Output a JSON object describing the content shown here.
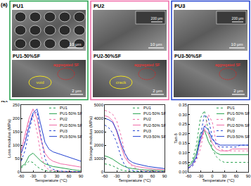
{
  "figure": {
    "panel_a": {
      "label": "(a)",
      "panels": [
        {
          "title": "PU1",
          "color": "#22a04a",
          "top": {
            "scale_bar": "10 μm"
          },
          "bottom": {
            "title": "PU1-50%SF",
            "scale_bar": "2 μm",
            "notes": [
              "aggregated SF",
              "void"
            ]
          }
        },
        {
          "title": "PU2",
          "color": "#f06ba8",
          "top": {
            "scale_bar": "10 μm",
            "inset_scale_bar": "200 μm"
          },
          "bottom": {
            "title": "PU2-50%SF",
            "scale_bar": "2 μm",
            "notes": [
              "aggregated SF",
              "crack"
            ]
          }
        },
        {
          "title": "PU3",
          "color": "#2040d0",
          "top": {
            "scale_bar": "10 μm",
            "inset_scale_bar": "200 μm"
          },
          "bottom": {
            "title": "PU3-50%SF",
            "scale_bar": "2 μm",
            "notes": [
              "aggregated SF"
            ]
          }
        }
      ]
    },
    "panel_b": {
      "label": "(b)"
    }
  },
  "chart_data": [
    {
      "type": "line",
      "x_label": "Temperature (°C)",
      "y_label": "Loss modulus (MPa)",
      "x": [
        -60,
        -50,
        -40,
        -30,
        -20,
        -10,
        0,
        10,
        20,
        30,
        40,
        50,
        60,
        70,
        80,
        90
      ],
      "xlim": [
        -60,
        90
      ],
      "xticks": [
        -60,
        -30,
        0,
        30,
        60,
        90
      ],
      "ylim": [
        0,
        250
      ],
      "yticks": [
        0,
        50,
        100,
        150,
        200,
        250
      ],
      "grid": false,
      "legend": "upper right",
      "series": [
        {
          "name": "PU1",
          "color": "#22a04a",
          "line_style": "dot",
          "values": [
            15,
            25,
            40,
            35,
            20,
            10,
            5,
            3,
            2,
            2,
            2,
            1,
            1,
            1,
            1,
            1
          ]
        },
        {
          "name": "PU1-50% SF",
          "color": "#22a04a",
          "line_style": "solid",
          "values": [
            20,
            30,
            60,
            70,
            55,
            40,
            30,
            25,
            20,
            18,
            15,
            12,
            10,
            8,
            6,
            5
          ]
        },
        {
          "name": "PU2",
          "color": "#f06ba8",
          "line_style": "dot",
          "values": [
            60,
            120,
            190,
            210,
            150,
            60,
            20,
            8,
            5,
            3,
            2,
            2,
            1,
            1,
            1,
            1
          ]
        },
        {
          "name": "PU2-50% SF",
          "color": "#f06ba8",
          "line_style": "solid",
          "values": [
            80,
            140,
            200,
            235,
            200,
            120,
            70,
            50,
            40,
            35,
            30,
            28,
            25,
            22,
            20,
            18
          ]
        },
        {
          "name": "PU3",
          "color": "#2040d0",
          "line_style": "dot",
          "values": [
            40,
            80,
            150,
            215,
            225,
            130,
            50,
            20,
            10,
            5,
            3,
            2,
            2,
            1,
            1,
            1
          ]
        },
        {
          "name": "PU3-50% SF",
          "color": "#2040d0",
          "line_style": "solid",
          "values": [
            70,
            110,
            170,
            220,
            235,
            170,
            110,
            85,
            75,
            70,
            65,
            60,
            55,
            50,
            45,
            40
          ]
        }
      ]
    },
    {
      "type": "line",
      "x_label": "Temperature (°C)",
      "y_label": "Storage modulus (MPa)",
      "x": [
        -60,
        -50,
        -40,
        -30,
        -20,
        -10,
        0,
        10,
        20,
        30,
        40,
        50,
        60,
        70,
        80,
        90
      ],
      "xlim": [
        -60,
        90
      ],
      "xticks": [
        -60,
        -30,
        0,
        30,
        60,
        90
      ],
      "ylim": [
        0,
        5000
      ],
      "yticks": [
        0,
        1000,
        2000,
        3000,
        4000,
        5000
      ],
      "grid": false,
      "legend": "upper right",
      "series": [
        {
          "name": "PU1",
          "color": "#22a04a",
          "line_style": "dot",
          "values": [
            600,
            550,
            450,
            300,
            150,
            80,
            50,
            30,
            20,
            15,
            10,
            8,
            6,
            5,
            5,
            5
          ]
        },
        {
          "name": "PU1-50% SF",
          "color": "#22a04a",
          "line_style": "solid",
          "values": [
            1200,
            1100,
            950,
            750,
            550,
            400,
            300,
            250,
            200,
            170,
            150,
            130,
            110,
            100,
            90,
            80
          ]
        },
        {
          "name": "PU2",
          "color": "#f06ba8",
          "line_style": "dot",
          "values": [
            4600,
            4500,
            4300,
            3800,
            2800,
            1500,
            700,
            400,
            250,
            150,
            100,
            80,
            60,
            50,
            40,
            30
          ]
        },
        {
          "name": "PU2-50% SF",
          "color": "#f06ba8",
          "line_style": "solid",
          "values": [
            4200,
            4100,
            3800,
            3000,
            2000,
            1100,
            700,
            500,
            400,
            350,
            300,
            260,
            220,
            200,
            180,
            160
          ]
        },
        {
          "name": "PU3",
          "color": "#2040d0",
          "line_style": "dot",
          "values": [
            3500,
            3300,
            2900,
            2200,
            1200,
            500,
            200,
            100,
            60,
            40,
            30,
            20,
            15,
            10,
            10,
            10
          ]
        },
        {
          "name": "PU3-50% SF",
          "color": "#2040d0",
          "line_style": "solid",
          "values": [
            4000,
            3900,
            3700,
            3100,
            2200,
            1400,
            900,
            700,
            600,
            520,
            460,
            400,
            360,
            320,
            280,
            250
          ]
        }
      ]
    },
    {
      "type": "line",
      "x_label": "Temperature (°C)",
      "y_label": "Tan δ",
      "x": [
        -60,
        -50,
        -40,
        -30,
        -20,
        -10,
        0,
        10,
        20,
        30,
        40,
        50,
        60,
        70,
        80,
        90
      ],
      "xlim": [
        -60,
        90
      ],
      "xticks": [
        -60,
        -30,
        0,
        30,
        60,
        90
      ],
      "ylim": [
        0,
        0.35
      ],
      "yticks": [
        {
          "value": 0,
          "label": "0.00"
        },
        {
          "value": 0.05,
          "label": "0.05"
        },
        {
          "value": 0.1,
          "label": "0.10"
        },
        {
          "value": 0.15,
          "label": "0.15"
        },
        {
          "value": 0.2,
          "label": "0.20"
        },
        {
          "value": 0.25,
          "label": "0.25"
        },
        {
          "value": 0.3,
          "label": "0.30"
        },
        {
          "value": 0.35,
          "label": "0.35"
        }
      ],
      "grid": false,
      "legend": "upper right",
      "series": [
        {
          "name": "PU1",
          "color": "#22a04a",
          "line_style": "dot",
          "values": [
            0.03,
            0.06,
            0.14,
            0.28,
            0.32,
            0.22,
            0.12,
            0.08,
            0.06,
            0.05,
            0.05,
            0.05,
            0.05,
            0.05,
            0.05,
            0.05
          ]
        },
        {
          "name": "PU1-50% SF",
          "color": "#22a04a",
          "line_style": "solid",
          "values": [
            0.03,
            0.05,
            0.1,
            0.2,
            0.22,
            0.16,
            0.12,
            0.1,
            0.09,
            0.09,
            0.09,
            0.09,
            0.09,
            0.09,
            0.09,
            0.09
          ]
        },
        {
          "name": "PU2",
          "color": "#f06ba8",
          "line_style": "dot",
          "values": [
            0.02,
            0.03,
            0.06,
            0.12,
            0.22,
            0.3,
            0.26,
            0.15,
            0.12,
            0.11,
            0.11,
            0.11,
            0.11,
            0.11,
            0.11,
            0.11
          ]
        },
        {
          "name": "PU2-50% SF",
          "color": "#f06ba8",
          "line_style": "solid",
          "values": [
            0.02,
            0.04,
            0.08,
            0.16,
            0.22,
            0.2,
            0.15,
            0.12,
            0.11,
            0.11,
            0.11,
            0.12,
            0.12,
            0.12,
            0.12,
            0.12
          ]
        },
        {
          "name": "PU3",
          "color": "#2040d0",
          "line_style": "dot",
          "values": [
            0.02,
            0.03,
            0.07,
            0.18,
            0.3,
            0.28,
            0.18,
            0.14,
            0.13,
            0.13,
            0.13,
            0.13,
            0.13,
            0.14,
            0.14,
            0.14
          ]
        },
        {
          "name": "PU3-50% SF",
          "color": "#2040d0",
          "line_style": "solid",
          "values": [
            0.02,
            0.04,
            0.08,
            0.17,
            0.24,
            0.22,
            0.17,
            0.15,
            0.14,
            0.14,
            0.14,
            0.14,
            0.14,
            0.14,
            0.14,
            0.14
          ]
        }
      ]
    }
  ]
}
